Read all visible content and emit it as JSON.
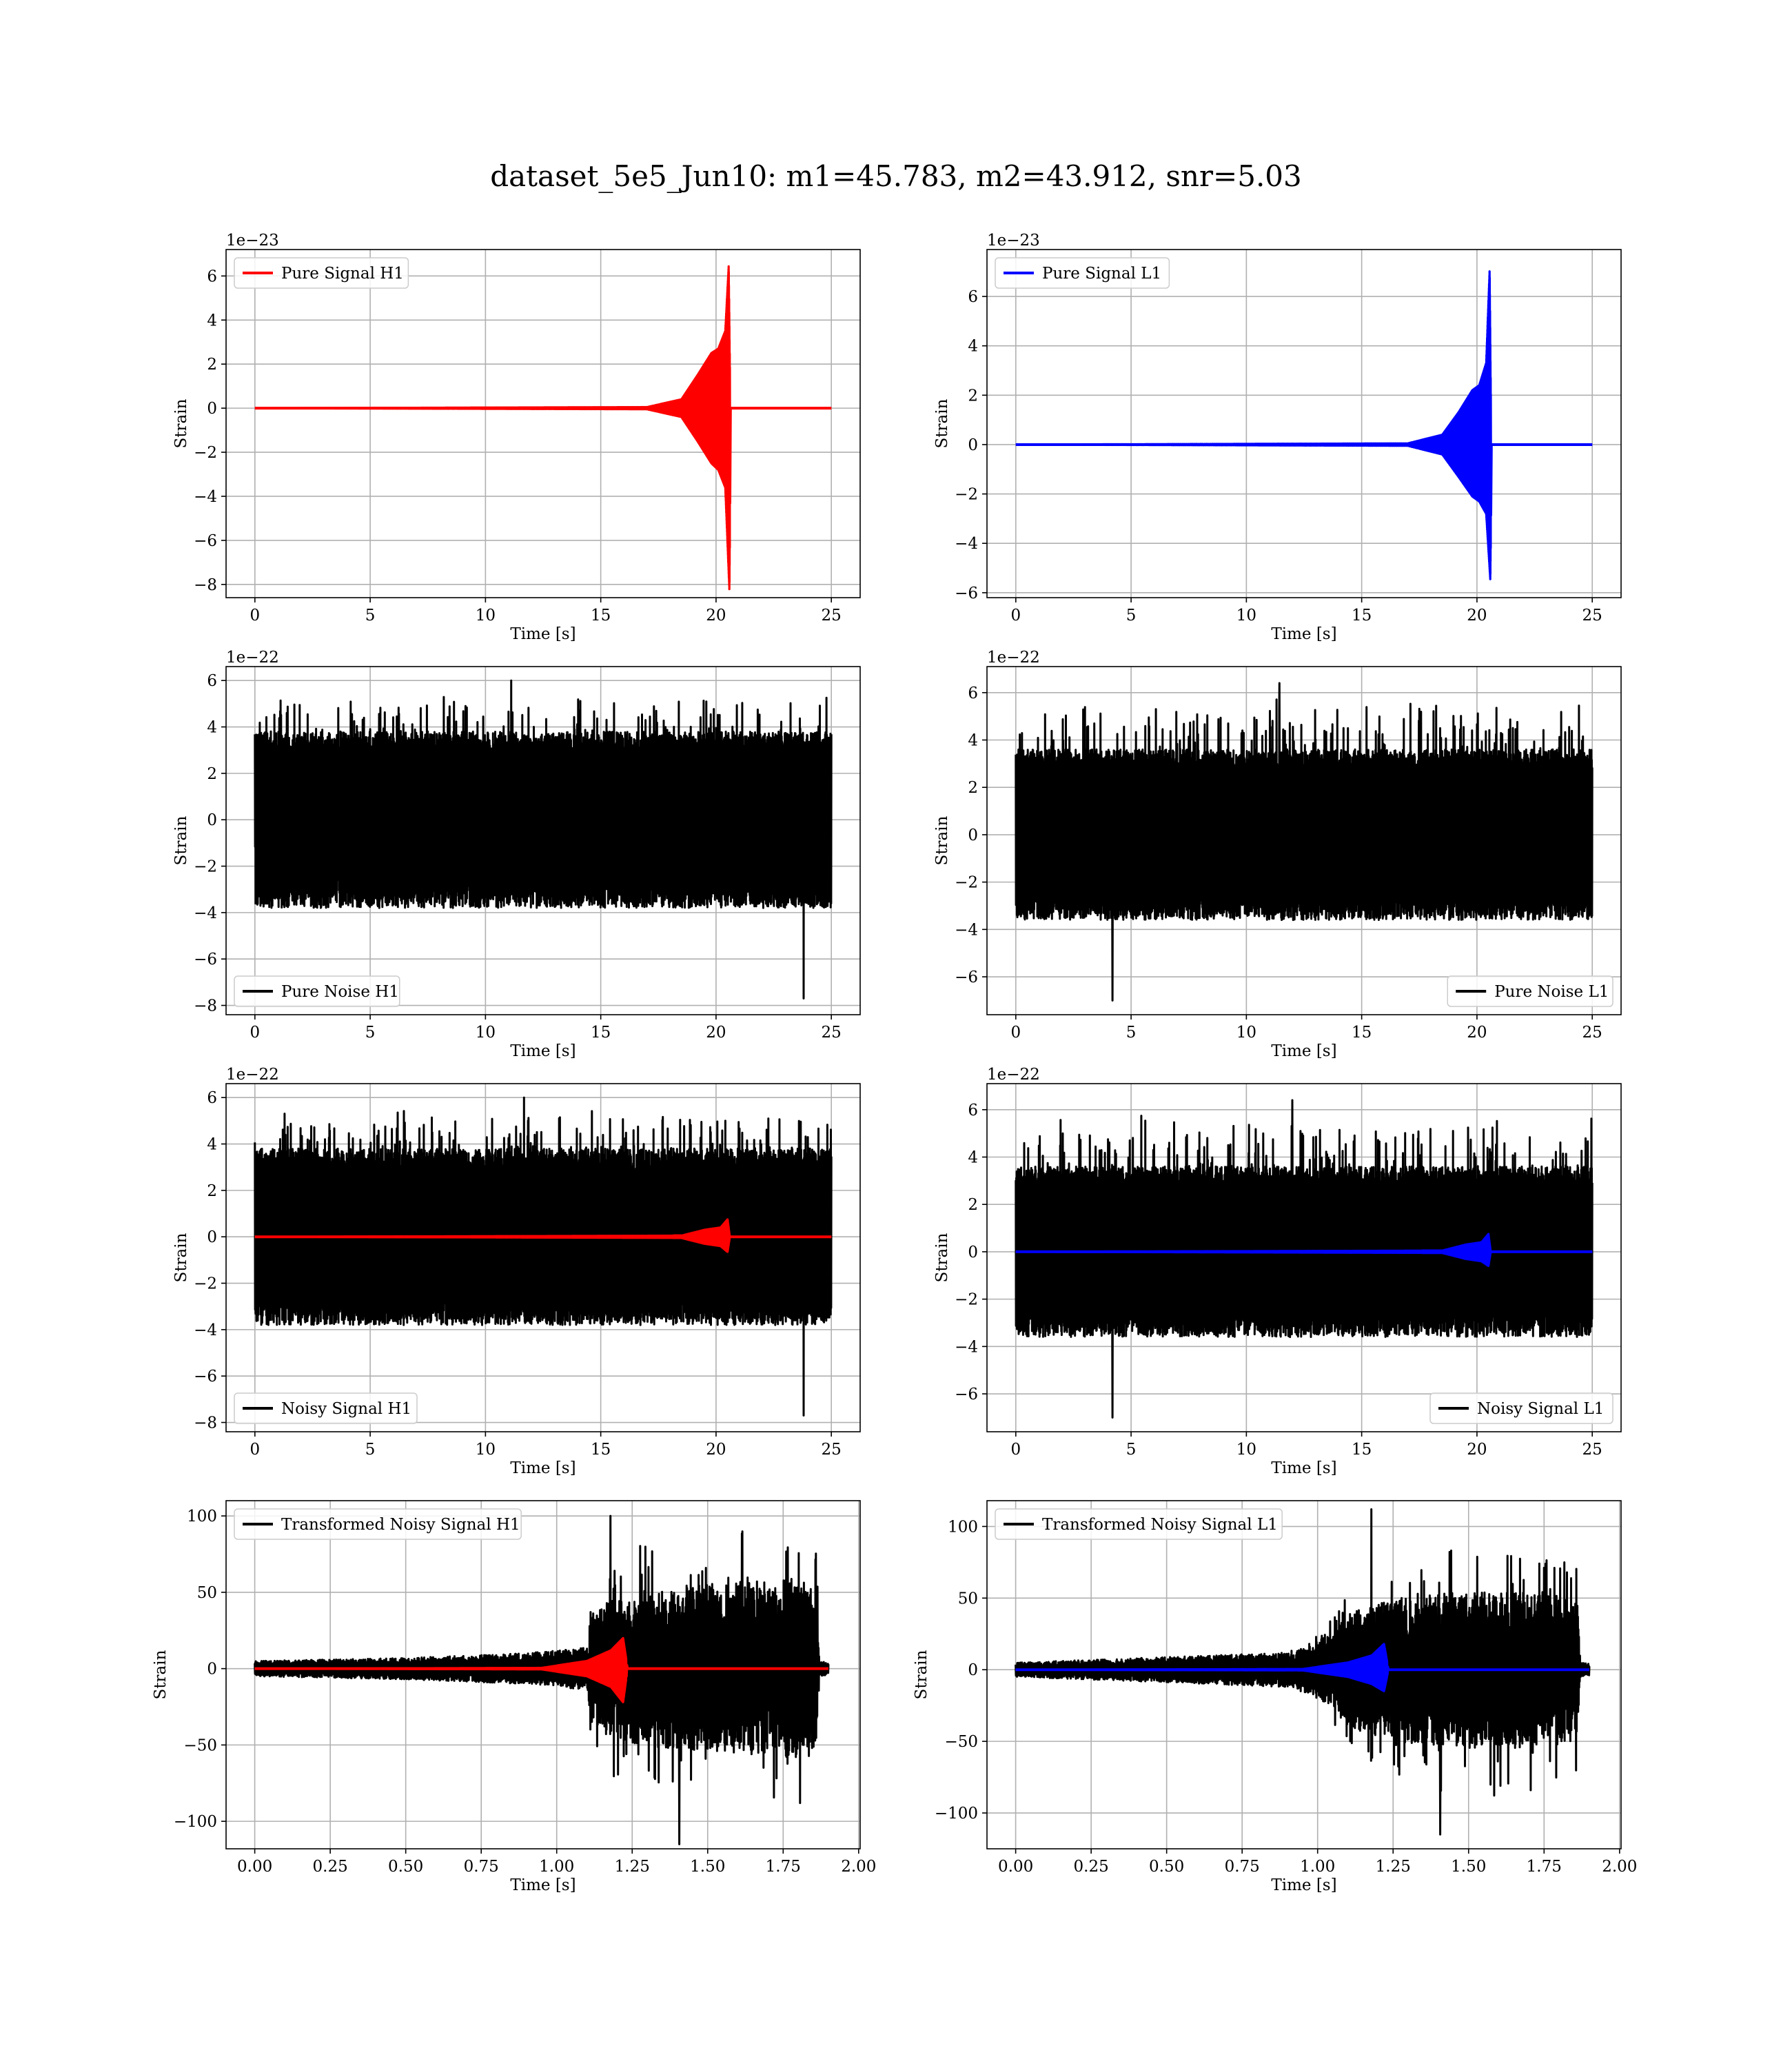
{
  "title": "dataset_5e5_Jun10: m1=45.783, m2=43.912, snr=5.03",
  "colors": {
    "h1_signal": "#ff0000",
    "l1_signal": "#0000ff",
    "noise": "#000000",
    "grid": "#b0b0b0"
  },
  "chart_data": [
    {
      "id": "pure-signal-h1",
      "type": "line",
      "xlabel": "Time [s]",
      "ylabel": "Strain",
      "offset_text": "1e−23",
      "xlim": [
        -1.25,
        26.25
      ],
      "ylim": [
        -8.6,
        7.2
      ],
      "xticks": [
        0,
        5,
        10,
        15,
        20,
        25
      ],
      "xtick_labels": [
        "0",
        "5",
        "10",
        "15",
        "20",
        "25"
      ],
      "yticks": [
        -8,
        -6,
        -4,
        -2,
        0,
        2,
        4,
        6
      ],
      "ytick_labels": [
        "−8",
        "−6",
        "−4",
        "−2",
        "0",
        "2",
        "4",
        "6"
      ],
      "grid": true,
      "legend_position": "upper left",
      "series": [
        {
          "name": "Pure Signal H1",
          "color": "#ff0000",
          "kind": "chirp",
          "t_start": 0,
          "t_end": 25,
          "t_merger": 20.6,
          "pos_envelope": [
            [
              0,
              0
            ],
            [
              17,
              0.05
            ],
            [
              18.5,
              0.4
            ],
            [
              19.2,
              1.5
            ],
            [
              19.8,
              2.5
            ],
            [
              20.1,
              2.7
            ],
            [
              20.4,
              3.5
            ],
            [
              20.55,
              6.5
            ],
            [
              20.62,
              0
            ]
          ],
          "neg_envelope": [
            [
              0,
              0
            ],
            [
              17,
              -0.05
            ],
            [
              18.5,
              -0.4
            ],
            [
              19.2,
              -1.5
            ],
            [
              19.8,
              -2.5
            ],
            [
              20.1,
              -2.8
            ],
            [
              20.4,
              -3.6
            ],
            [
              20.58,
              -8.3
            ],
            [
              20.65,
              0
            ]
          ]
        }
      ]
    },
    {
      "id": "pure-signal-l1",
      "type": "line",
      "xlabel": "Time [s]",
      "ylabel": "Strain",
      "offset_text": "1e−23",
      "xlim": [
        -1.25,
        26.25
      ],
      "ylim": [
        -6.2,
        7.9
      ],
      "xticks": [
        0,
        5,
        10,
        15,
        20,
        25
      ],
      "xtick_labels": [
        "0",
        "5",
        "10",
        "15",
        "20",
        "25"
      ],
      "yticks": [
        -6,
        -4,
        -2,
        0,
        2,
        4,
        6
      ],
      "ytick_labels": [
        "−6",
        "−4",
        "−2",
        "0",
        "2",
        "4",
        "6"
      ],
      "grid": true,
      "legend_position": "upper left",
      "series": [
        {
          "name": "Pure Signal L1",
          "color": "#0000ff",
          "kind": "chirp",
          "t_start": 0,
          "t_end": 25,
          "t_merger": 20.6,
          "pos_envelope": [
            [
              0,
              0
            ],
            [
              17,
              0.05
            ],
            [
              18.5,
              0.4
            ],
            [
              19.2,
              1.3
            ],
            [
              19.8,
              2.2
            ],
            [
              20.1,
              2.4
            ],
            [
              20.4,
              3.3
            ],
            [
              20.55,
              7.1
            ],
            [
              20.62,
              0
            ]
          ],
          "neg_envelope": [
            [
              0,
              0
            ],
            [
              17,
              -0.05
            ],
            [
              18.5,
              -0.4
            ],
            [
              19.2,
              -1.3
            ],
            [
              19.8,
              -2.1
            ],
            [
              20.1,
              -2.3
            ],
            [
              20.4,
              -2.8
            ],
            [
              20.58,
              -5.5
            ],
            [
              20.65,
              0
            ]
          ]
        }
      ]
    },
    {
      "id": "pure-noise-h1",
      "type": "line",
      "xlabel": "Time [s]",
      "ylabel": "Strain",
      "offset_text": "1e−22",
      "xlim": [
        -1.25,
        26.25
      ],
      "ylim": [
        -8.4,
        6.6
      ],
      "xticks": [
        0,
        5,
        10,
        15,
        20,
        25
      ],
      "xtick_labels": [
        "0",
        "5",
        "10",
        "15",
        "20",
        "25"
      ],
      "yticks": [
        -8,
        -6,
        -4,
        -2,
        0,
        2,
        4,
        6
      ],
      "ytick_labels": [
        "−8",
        "−6",
        "−4",
        "−2",
        "0",
        "2",
        "4",
        "6"
      ],
      "grid": true,
      "legend_position": "lower left",
      "series": [
        {
          "name": "Pure Noise H1",
          "color": "#000000",
          "kind": "noise",
          "t_start": 0,
          "t_end": 25,
          "body": [
            -3.8,
            3.8
          ],
          "pos_peak": 6.0,
          "neg_peak": -7.7,
          "neg_peak_t": 23.8,
          "seed": 11
        }
      ]
    },
    {
      "id": "pure-noise-l1",
      "type": "line",
      "xlabel": "Time [s]",
      "ylabel": "Strain",
      "offset_text": "1e−22",
      "xlim": [
        -1.25,
        26.25
      ],
      "ylim": [
        -7.6,
        7.1
      ],
      "xticks": [
        0,
        5,
        10,
        15,
        20,
        25
      ],
      "xtick_labels": [
        "0",
        "5",
        "10",
        "15",
        "20",
        "25"
      ],
      "yticks": [
        -6,
        -4,
        -2,
        0,
        2,
        4,
        6
      ],
      "ytick_labels": [
        "−6",
        "−4",
        "−2",
        "0",
        "2",
        "4",
        "6"
      ],
      "grid": true,
      "legend_position": "lower right",
      "series": [
        {
          "name": "Pure Noise L1",
          "color": "#000000",
          "kind": "noise",
          "t_start": 0,
          "t_end": 25,
          "body": [
            -3.6,
            3.6
          ],
          "pos_peak": 6.4,
          "neg_peak": -7.0,
          "neg_peak_t": 4.2,
          "seed": 23
        }
      ]
    },
    {
      "id": "noisy-signal-h1",
      "type": "line",
      "xlabel": "Time [s]",
      "ylabel": "Strain",
      "offset_text": "1e−22",
      "xlim": [
        -1.25,
        26.25
      ],
      "ylim": [
        -8.4,
        6.6
      ],
      "xticks": [
        0,
        5,
        10,
        15,
        20,
        25
      ],
      "xtick_labels": [
        "0",
        "5",
        "10",
        "15",
        "20",
        "25"
      ],
      "yticks": [
        -8,
        -6,
        -4,
        -2,
        0,
        2,
        4,
        6
      ],
      "ytick_labels": [
        "−8",
        "−6",
        "−4",
        "−2",
        "0",
        "2",
        "4",
        "6"
      ],
      "grid": true,
      "legend_position": "lower left",
      "series": [
        {
          "name": "Noisy Signal H1",
          "color": "#000000",
          "kind": "noise",
          "t_start": 0,
          "t_end": 25,
          "body": [
            -3.8,
            3.8
          ],
          "pos_peak": 6.0,
          "neg_peak": -7.7,
          "neg_peak_t": 23.8,
          "seed": 11
        },
        {
          "name": "",
          "color": "#ff0000",
          "kind": "chirp",
          "t_start": 0,
          "t_end": 25,
          "t_merger": 20.6,
          "pos_envelope": [
            [
              0,
              0
            ],
            [
              18.5,
              0.05
            ],
            [
              19.5,
              0.3
            ],
            [
              20.2,
              0.4
            ],
            [
              20.5,
              0.75
            ],
            [
              20.6,
              0
            ]
          ],
          "neg_envelope": [
            [
              0,
              0
            ],
            [
              18.5,
              -0.05
            ],
            [
              19.5,
              -0.3
            ],
            [
              20.2,
              -0.4
            ],
            [
              20.5,
              -0.65
            ],
            [
              20.6,
              0
            ]
          ]
        }
      ]
    },
    {
      "id": "noisy-signal-l1",
      "type": "line",
      "xlabel": "Time [s]",
      "ylabel": "Strain",
      "offset_text": "1e−22",
      "xlim": [
        -1.25,
        26.25
      ],
      "ylim": [
        -7.6,
        7.1
      ],
      "xticks": [
        0,
        5,
        10,
        15,
        20,
        25
      ],
      "xtick_labels": [
        "0",
        "5",
        "10",
        "15",
        "20",
        "25"
      ],
      "yticks": [
        -6,
        -4,
        -2,
        0,
        2,
        4,
        6
      ],
      "ytick_labels": [
        "−6",
        "−4",
        "−2",
        "0",
        "2",
        "4",
        "6"
      ],
      "grid": true,
      "legend_position": "lower right",
      "series": [
        {
          "name": "Noisy Signal L1",
          "color": "#000000",
          "kind": "noise",
          "t_start": 0,
          "t_end": 25,
          "body": [
            -3.6,
            3.6
          ],
          "pos_peak": 6.4,
          "neg_peak": -7.0,
          "neg_peak_t": 4.2,
          "seed": 23
        },
        {
          "name": "",
          "color": "#0000ff",
          "kind": "chirp",
          "t_start": 0,
          "t_end": 25,
          "t_merger": 20.6,
          "pos_envelope": [
            [
              0,
              0
            ],
            [
              18.5,
              0.05
            ],
            [
              19.5,
              0.3
            ],
            [
              20.2,
              0.4
            ],
            [
              20.5,
              0.75
            ],
            [
              20.6,
              0
            ]
          ],
          "neg_envelope": [
            [
              0,
              0
            ],
            [
              18.5,
              -0.05
            ],
            [
              19.5,
              -0.3
            ],
            [
              20.2,
              -0.4
            ],
            [
              20.5,
              -0.6
            ],
            [
              20.6,
              0
            ]
          ]
        }
      ]
    },
    {
      "id": "transformed-noisy-signal-h1",
      "type": "line",
      "xlabel": "Time [s]",
      "ylabel": "Strain",
      "offset_text": "",
      "xlim": [
        -0.095,
        2.005
      ],
      "ylim": [
        -118,
        110
      ],
      "xticks": [
        0,
        0.25,
        0.5,
        0.75,
        1.0,
        1.25,
        1.5,
        1.75,
        2.0
      ],
      "xtick_labels": [
        "0.00",
        "0.25",
        "0.50",
        "0.75",
        "1.00",
        "1.25",
        "1.50",
        "1.75",
        "2.00"
      ],
      "yticks": [
        -100,
        -50,
        0,
        50,
        100
      ],
      "ytick_labels": [
        "−100",
        "−50",
        "0",
        "50",
        "100"
      ],
      "grid": true,
      "legend_position": "upper left",
      "series": [
        {
          "name": "Transformed Noisy Signal H1",
          "color": "#000000",
          "kind": "transformed",
          "t_start": 0,
          "t_end": 1.9,
          "amp_envelope": [
            [
              0,
              5
            ],
            [
              0.5,
              7
            ],
            [
              0.9,
              10
            ],
            [
              1.1,
              14
            ],
            [
              1.12,
              40
            ],
            [
              1.25,
              50
            ],
            [
              1.5,
              55
            ],
            [
              1.75,
              60
            ],
            [
              1.86,
              55
            ],
            [
              1.87,
              5
            ],
            [
              1.9,
              4
            ]
          ],
          "pos_peak": 100,
          "neg_peak": -115,
          "seed": 37
        },
        {
          "name": "",
          "color": "#ff0000",
          "kind": "chirp",
          "t_start": 0,
          "t_end": 1.9,
          "t_merger": 1.23,
          "pos_envelope": [
            [
              0,
              0
            ],
            [
              0.95,
              0.5
            ],
            [
              1.1,
              5
            ],
            [
              1.18,
              12
            ],
            [
              1.22,
              20
            ],
            [
              1.235,
              0
            ]
          ],
          "neg_envelope": [
            [
              0,
              0
            ],
            [
              0.95,
              -0.5
            ],
            [
              1.1,
              -5
            ],
            [
              1.18,
              -12
            ],
            [
              1.22,
              -22
            ],
            [
              1.235,
              0
            ]
          ]
        }
      ]
    },
    {
      "id": "transformed-noisy-signal-l1",
      "type": "line",
      "xlabel": "Time [s]",
      "ylabel": "Strain",
      "offset_text": "",
      "xlim": [
        -0.095,
        2.005
      ],
      "ylim": [
        -125,
        118
      ],
      "xticks": [
        0,
        0.25,
        0.5,
        0.75,
        1.0,
        1.25,
        1.5,
        1.75,
        2.0
      ],
      "xtick_labels": [
        "0.00",
        "0.25",
        "0.50",
        "0.75",
        "1.00",
        "1.25",
        "1.50",
        "1.75",
        "2.00"
      ],
      "yticks": [
        -100,
        -50,
        0,
        50,
        100
      ],
      "ytick_labels": [
        "−100",
        "−50",
        "0",
        "50",
        "100"
      ],
      "grid": true,
      "legend_position": "upper left",
      "series": [
        {
          "name": "Transformed Noisy Signal L1",
          "color": "#000000",
          "kind": "transformed",
          "t_start": 0,
          "t_end": 1.9,
          "amp_envelope": [
            [
              0,
              5
            ],
            [
              0.4,
              8
            ],
            [
              0.9,
              12
            ],
            [
              1.05,
              25
            ],
            [
              1.1,
              40
            ],
            [
              1.25,
              50
            ],
            [
              1.5,
              55
            ],
            [
              1.75,
              55
            ],
            [
              1.86,
              50
            ],
            [
              1.87,
              5
            ],
            [
              1.9,
              4
            ]
          ],
          "pos_peak": 112,
          "neg_peak": -115,
          "seed": 53
        },
        {
          "name": "",
          "color": "#0000ff",
          "kind": "chirp",
          "t_start": 0,
          "t_end": 1.9,
          "t_merger": 1.23,
          "pos_envelope": [
            [
              0,
              0
            ],
            [
              0.95,
              0.5
            ],
            [
              1.1,
              5
            ],
            [
              1.18,
              10
            ],
            [
              1.22,
              18
            ],
            [
              1.235,
              0
            ]
          ],
          "neg_envelope": [
            [
              0,
              0
            ],
            [
              0.95,
              -0.5
            ],
            [
              1.1,
              -5
            ],
            [
              1.18,
              -10
            ],
            [
              1.22,
              -15
            ],
            [
              1.235,
              0
            ]
          ]
        }
      ]
    }
  ]
}
